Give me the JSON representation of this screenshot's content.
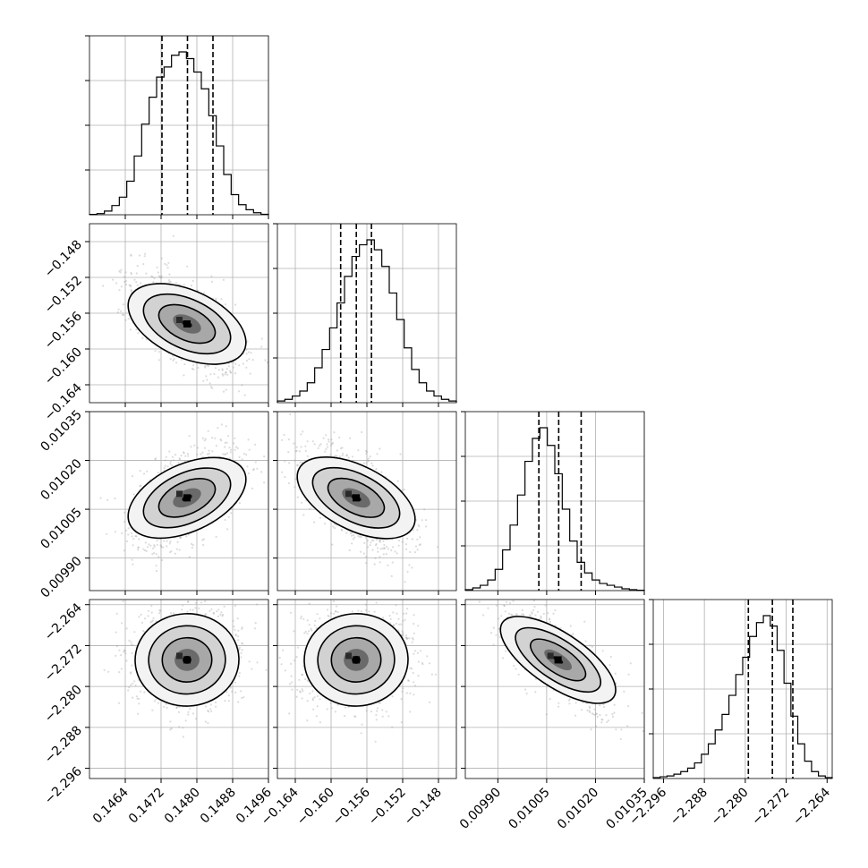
{
  "chart_data": {
    "type": "corner",
    "grid": true,
    "quantile_lines": "dashed",
    "parameters": [
      {
        "range": [
          0.1456,
          0.1496
        ],
        "ticks": [
          0.1464,
          0.1472,
          0.148,
          0.1488,
          0.1496
        ],
        "tick_labels": [
          "0.1464",
          "0.1472",
          "0.1480",
          "0.1488",
          "0.1496"
        ],
        "quantiles": [
          0.14722,
          0.14779,
          0.14836
        ],
        "hist": [
          0.2,
          0.7,
          2.2,
          5.5,
          10.5,
          20,
          35,
          54,
          70,
          82,
          88,
          95,
          97,
          93,
          85,
          75,
          59,
          41,
          24,
          12,
          6,
          3,
          1.2,
          0.3
        ]
      },
      {
        "range": [
          -0.166,
          -0.146
        ],
        "ticks": [
          -0.164,
          -0.16,
          -0.156,
          -0.152,
          -0.148
        ],
        "tick_labels": [
          "−0.164",
          "−0.160",
          "−0.156",
          "−0.152",
          "−0.148"
        ],
        "quantiles": [
          -0.15893,
          -0.15718,
          -0.15549
        ],
        "hist": [
          1,
          2,
          4,
          7,
          12,
          21,
          32,
          45,
          60,
          76,
          88,
          95,
          98,
          92,
          82,
          66,
          50,
          33,
          20,
          12,
          7,
          4,
          2,
          1
        ]
      },
      {
        "range": [
          0.0098,
          0.01035
        ],
        "ticks": [
          0.0099,
          0.01005,
          0.0102,
          0.01035
        ],
        "tick_labels": [
          "0.00990",
          "0.01005",
          "0.01020",
          "0.01035"
        ],
        "quantiles": [
          0.010026,
          0.010087,
          0.010156
        ],
        "hist": [
          0.5,
          1.5,
          3,
          6,
          12,
          23,
          37,
          54,
          73,
          86,
          92,
          82,
          66,
          46,
          28,
          16,
          10,
          6,
          4,
          3,
          2,
          1,
          0.5,
          0.2
        ]
      },
      {
        "range": [
          -2.298,
          -2.263
        ],
        "ticks": [
          -2.296,
          -2.288,
          -2.28,
          -2.272,
          -2.264
        ],
        "tick_labels": [
          "−2.296",
          "−2.288",
          "−2.280",
          "−2.272",
          "−2.264"
        ],
        "quantiles": [
          -2.2794,
          -2.2747,
          -2.2707
        ],
        "hist": [
          0.5,
          1,
          1.5,
          2.5,
          4,
          6,
          9,
          14,
          20,
          28,
          37,
          48,
          60,
          70,
          82,
          90,
          94,
          88,
          74,
          55,
          36,
          20,
          10,
          4,
          1.5,
          0.5
        ]
      }
    ],
    "pairs": [
      {
        "row": 1,
        "col": 0,
        "center": [
          0.14778,
          -0.1572
        ],
        "rho": -0.55
      },
      {
        "row": 2,
        "col": 0,
        "center": [
          0.14778,
          0.010085
        ],
        "rho": 0.55
      },
      {
        "row": 2,
        "col": 1,
        "center": [
          -0.1572,
          0.010085
        ],
        "rho": -0.6
      },
      {
        "row": 3,
        "col": 0,
        "center": [
          0.14778,
          -2.2748
        ],
        "rho": 0.05
      },
      {
        "row": 3,
        "col": 1,
        "center": [
          -0.1572,
          -2.2748
        ],
        "rho": 0.05
      },
      {
        "row": 3,
        "col": 2,
        "center": [
          0.010085,
          -2.2748
        ],
        "rho": -0.75
      }
    ]
  }
}
